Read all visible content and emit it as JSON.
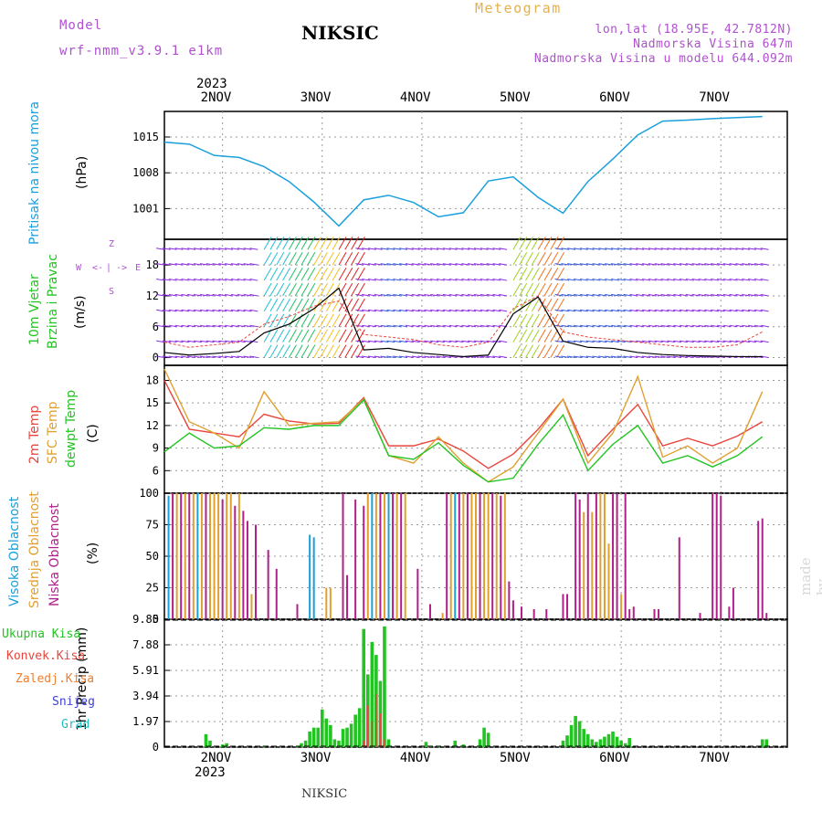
{
  "header": {
    "model_label": "Model",
    "model_name": "wrf-nmm_v3.9.1 e1km",
    "station": "NIKSIC",
    "meteogram_label": "Meteogram",
    "coords": "lon,lat (18.95E, 42.7812N)",
    "elevation": "Nadmorska Visina 647m",
    "model_elevation": "Nadmorska Visina u modelu 644.092m",
    "year_top": "2023",
    "year_bottom": "2023",
    "footer_station": "NIKSIC",
    "credit": "made by Angel"
  },
  "colors": {
    "pressure": "#1aa0dc",
    "temp2m": "#e8453c",
    "sfc": "#e0a030",
    "dew": "#22c422",
    "wind_line": "#000000",
    "gust_line": "#e8453c",
    "cloud_high": "#1aa0dc",
    "cloud_mid": "#e0a030",
    "cloud_low": "#b0208a",
    "precip_total": "#22c422",
    "precip_conv": "#e8453c"
  },
  "axis_labels": {
    "pressure": [
      "Pritisak na nivou mora",
      "(hPa)"
    ],
    "wind": [
      "10m Vjetar",
      "Brzina i Pravac",
      "(m/s)"
    ],
    "temp": [
      "2m Temp",
      "SFC Temp",
      "dewpt Temp",
      "(C)"
    ],
    "cloud": [
      "Visoka Oblacnost",
      "Srednja Oblacnost",
      "Niska Oblacnost",
      "(%)"
    ],
    "precip": [
      "1hr Precip (mm)"
    ],
    "precip_legend": [
      "Ukupna Kisa",
      "Konvek.Kisa",
      "Zaledj.Kisa",
      "Snijeg",
      "Grad"
    ],
    "compass": [
      "Z",
      "<-",
      "|",
      "->",
      "E",
      "W",
      "S"
    ]
  },
  "days": [
    "2NOV",
    "3NOV",
    "4NOV",
    "5NOV",
    "6NOV",
    "7NOV"
  ],
  "chart_data": [
    {
      "type": "line",
      "name": "pressure",
      "ylabel": "Pritisak na nivou mora (hPa)",
      "ylim": [
        995,
        1020
      ],
      "yticks": [
        1001,
        1008,
        1015
      ],
      "x_hours": [
        0,
        6,
        12,
        18,
        24,
        30,
        36,
        42,
        48,
        54,
        60,
        66,
        72,
        78,
        84,
        90,
        96,
        102,
        108,
        114,
        120,
        126,
        132,
        138,
        144
      ],
      "values": [
        1014,
        1013.6,
        1011.4,
        1011,
        1009.2,
        1006.3,
        1002.3,
        997.6,
        1002.7,
        1003.6,
        1002.2,
        999.4,
        1000.2,
        1006.4,
        1007.2,
        1003.2,
        1000.1,
        1006.3,
        1010.7,
        1015.4,
        1018.1,
        1018.3,
        1018.6,
        1018.8,
        1019
      ]
    },
    {
      "type": "line",
      "name": "wind",
      "ylabel": "10m Vjetar Brzina i Pravac (m/s)",
      "ylim": [
        -1.5,
        23
      ],
      "yticks": [
        0,
        6,
        12,
        18
      ],
      "x_hours": [
        0,
        6,
        12,
        18,
        24,
        30,
        36,
        42,
        48,
        54,
        60,
        66,
        72,
        78,
        84,
        90,
        96,
        102,
        108,
        114,
        120,
        126,
        132,
        138,
        144
      ],
      "values": [
        1,
        0.5,
        0.8,
        1.2,
        4.8,
        6.5,
        9.5,
        13.5,
        1.5,
        1.8,
        1,
        0.6,
        0.2,
        0.5,
        8.5,
        11.8,
        3.2,
        2,
        1.8,
        1,
        0.6,
        0.4,
        0.3,
        0.2,
        0.2
      ],
      "gusts": [
        3,
        2,
        2.5,
        3,
        6.5,
        8,
        10,
        11,
        4.5,
        4,
        3.5,
        2.5,
        2,
        3,
        9.5,
        12,
        5,
        4,
        3.5,
        3,
        2.5,
        2,
        2,
        2.5,
        5
      ]
    },
    {
      "type": "line",
      "name": "temperature",
      "ylabel": "(C)",
      "ylim": [
        3,
        20
      ],
      "yticks": [
        6,
        9,
        12,
        15,
        18
      ],
      "x_hours": [
        0,
        6,
        12,
        18,
        24,
        30,
        36,
        42,
        48,
        54,
        60,
        66,
        72,
        78,
        84,
        90,
        96,
        102,
        108,
        114,
        120,
        126,
        132,
        138,
        144
      ],
      "series": [
        {
          "name": "2m Temp",
          "values": [
            18,
            11.5,
            11,
            10.5,
            13.5,
            12.6,
            12.2,
            12.3,
            15.7,
            9.3,
            9.3,
            10.2,
            8.6,
            6.3,
            8.2,
            11.5,
            15.5,
            8,
            11.5,
            14.8,
            9.3,
            10.3,
            9.3,
            10.6,
            12.5
          ]
        },
        {
          "name": "SFC Temp",
          "values": [
            19.5,
            12.5,
            11,
            9,
            16.5,
            12,
            12.3,
            12.5,
            15.5,
            8,
            7,
            10.5,
            7,
            4.5,
            6.5,
            11,
            15.5,
            7,
            11,
            18.5,
            7.8,
            9.3,
            7,
            9,
            16.5
          ]
        },
        {
          "name": "dewpt Temp",
          "values": [
            8.5,
            11,
            9,
            9.3,
            11.7,
            11.5,
            12,
            12,
            15.4,
            8,
            7.5,
            9.7,
            6.7,
            4.5,
            5,
            9.5,
            13.4,
            6,
            9.5,
            12,
            7,
            8,
            6.5,
            8,
            10.5
          ]
        }
      ]
    },
    {
      "type": "bar",
      "name": "cloud",
      "ylabel": "(%)",
      "ylim": [
        0,
        100
      ],
      "yticks": [
        0,
        25,
        50,
        75,
        100
      ],
      "bins": [
        {
          "h": 1,
          "c": "high",
          "v": 98
        },
        {
          "h": 2,
          "c": "low",
          "v": 100
        },
        {
          "h": 3,
          "c": "mid",
          "v": 100
        },
        {
          "h": 4,
          "c": "low",
          "v": 100
        },
        {
          "h": 5,
          "c": "mid",
          "v": 100
        },
        {
          "h": 6,
          "c": "low",
          "v": 100
        },
        {
          "h": 7,
          "c": "mid",
          "v": 100
        },
        {
          "h": 8,
          "c": "high",
          "v": 100
        },
        {
          "h": 9,
          "c": "mid",
          "v": 100
        },
        {
          "h": 10,
          "c": "low",
          "v": 100
        },
        {
          "h": 11,
          "c": "mid",
          "v": 100
        },
        {
          "h": 12,
          "c": "mid",
          "v": 100
        },
        {
          "h": 13,
          "c": "mid",
          "v": 100
        },
        {
          "h": 14,
          "c": "low",
          "v": 95
        },
        {
          "h": 15,
          "c": "mid",
          "v": 100
        },
        {
          "h": 16,
          "c": "mid",
          "v": 100
        },
        {
          "h": 17,
          "c": "low",
          "v": 90
        },
        {
          "h": 18,
          "c": "mid",
          "v": 100
        },
        {
          "h": 19,
          "c": "low",
          "v": 86
        },
        {
          "h": 20,
          "c": "low",
          "v": 78
        },
        {
          "h": 21,
          "c": "mid",
          "v": 20
        },
        {
          "h": 22,
          "c": "low",
          "v": 75
        },
        {
          "h": 25,
          "c": "low",
          "v": 55
        },
        {
          "h": 27,
          "c": "low",
          "v": 40
        },
        {
          "h": 32,
          "c": "low",
          "v": 12
        },
        {
          "h": 35,
          "c": "high",
          "v": 67
        },
        {
          "h": 36,
          "c": "high",
          "v": 65
        },
        {
          "h": 39,
          "c": "mid",
          "v": 25
        },
        {
          "h": 40,
          "c": "mid",
          "v": 25
        },
        {
          "h": 43,
          "c": "low",
          "v": 100
        },
        {
          "h": 44,
          "c": "low",
          "v": 35
        },
        {
          "h": 46,
          "c": "low",
          "v": 95
        },
        {
          "h": 48,
          "c": "low",
          "v": 90
        },
        {
          "h": 49,
          "c": "mid",
          "v": 100
        },
        {
          "h": 50,
          "c": "high",
          "v": 100
        },
        {
          "h": 51,
          "c": "mid",
          "v": 100
        },
        {
          "h": 52,
          "c": "low",
          "v": 100
        },
        {
          "h": 53,
          "c": "mid",
          "v": 100
        },
        {
          "h": 54,
          "c": "high",
          "v": 100
        },
        {
          "h": 55,
          "c": "low",
          "v": 100
        },
        {
          "h": 56,
          "c": "mid",
          "v": 100
        },
        {
          "h": 57,
          "c": "low",
          "v": 100
        },
        {
          "h": 58,
          "c": "mid",
          "v": 100
        },
        {
          "h": 61,
          "c": "low",
          "v": 40
        },
        {
          "h": 64,
          "c": "low",
          "v": 12
        },
        {
          "h": 67,
          "c": "mid",
          "v": 5
        },
        {
          "h": 68,
          "c": "low",
          "v": 100
        },
        {
          "h": 69,
          "c": "mid",
          "v": 100
        },
        {
          "h": 70,
          "c": "high",
          "v": 100
        },
        {
          "h": 71,
          "c": "low",
          "v": 100
        },
        {
          "h": 72,
          "c": "mid",
          "v": 100
        },
        {
          "h": 73,
          "c": "low",
          "v": 100
        },
        {
          "h": 74,
          "c": "mid",
          "v": 100
        },
        {
          "h": 75,
          "c": "mid",
          "v": 100
        },
        {
          "h": 76,
          "c": "low",
          "v": 100
        },
        {
          "h": 77,
          "c": "mid",
          "v": 100
        },
        {
          "h": 78,
          "c": "mid",
          "v": 100
        },
        {
          "h": 79,
          "c": "low",
          "v": 100
        },
        {
          "h": 80,
          "c": "mid",
          "v": 100
        },
        {
          "h": 81,
          "c": "low",
          "v": 98
        },
        {
          "h": 82,
          "c": "mid",
          "v": 100
        },
        {
          "h": 83,
          "c": "low",
          "v": 30
        },
        {
          "h": 84,
          "c": "low",
          "v": 15
        },
        {
          "h": 86,
          "c": "low",
          "v": 10
        },
        {
          "h": 89,
          "c": "low",
          "v": 8
        },
        {
          "h": 92,
          "c": "low",
          "v": 8
        },
        {
          "h": 96,
          "c": "low",
          "v": 20
        },
        {
          "h": 97,
          "c": "low",
          "v": 20
        },
        {
          "h": 99,
          "c": "low",
          "v": 100
        },
        {
          "h": 100,
          "c": "low",
          "v": 95
        },
        {
          "h": 101,
          "c": "mid",
          "v": 85
        },
        {
          "h": 102,
          "c": "low",
          "v": 100
        },
        {
          "h": 103,
          "c": "mid",
          "v": 85
        },
        {
          "h": 104,
          "c": "low",
          "v": 100
        },
        {
          "h": 105,
          "c": "mid",
          "v": 100
        },
        {
          "h": 106,
          "c": "mid",
          "v": 100
        },
        {
          "h": 107,
          "c": "mid",
          "v": 60
        },
        {
          "h": 108,
          "c": "low",
          "v": 100
        },
        {
          "h": 109,
          "c": "low",
          "v": 100
        },
        {
          "h": 110,
          "c": "mid",
          "v": 20
        },
        {
          "h": 111,
          "c": "low",
          "v": 100
        },
        {
          "h": 112,
          "c": "low",
          "v": 8
        },
        {
          "h": 113,
          "c": "low",
          "v": 10
        },
        {
          "h": 118,
          "c": "low",
          "v": 8
        },
        {
          "h": 119,
          "c": "low",
          "v": 8
        },
        {
          "h": 124,
          "c": "low",
          "v": 65
        },
        {
          "h": 129,
          "c": "low",
          "v": 5
        },
        {
          "h": 132,
          "c": "low",
          "v": 100
        },
        {
          "h": 133,
          "c": "low",
          "v": 100
        },
        {
          "h": 134,
          "c": "low",
          "v": 98
        },
        {
          "h": 136,
          "c": "low",
          "v": 10
        },
        {
          "h": 137,
          "c": "low",
          "v": 25
        },
        {
          "h": 143,
          "c": "low",
          "v": 78
        },
        {
          "h": 144,
          "c": "low",
          "v": 80
        },
        {
          "h": 145,
          "c": "low",
          "v": 5
        }
      ]
    },
    {
      "type": "bar",
      "name": "precip",
      "ylabel": "1hr Precip (mm)",
      "ylim": [
        0,
        9.85
      ],
      "yticks": [
        0,
        1.97,
        3.94,
        5.91,
        7.88,
        9.85
      ],
      "bins": [
        {
          "h": 10,
          "t": 1.0
        },
        {
          "h": 11,
          "t": 0.5
        },
        {
          "h": 14,
          "t": 0.2
        },
        {
          "h": 15,
          "t": 0.3
        },
        {
          "h": 24,
          "t": 0.1
        },
        {
          "h": 32,
          "t": 0.1
        },
        {
          "h": 33,
          "t": 0.3
        },
        {
          "h": 34,
          "t": 0.5
        },
        {
          "h": 35,
          "t": 1.2
        },
        {
          "h": 36,
          "t": 1.5
        },
        {
          "h": 37,
          "t": 1.5
        },
        {
          "h": 38,
          "t": 2.9
        },
        {
          "h": 39,
          "t": 2.2
        },
        {
          "h": 40,
          "t": 1.7
        },
        {
          "h": 41,
          "t": 0.6
        },
        {
          "h": 42,
          "t": 0.5
        },
        {
          "h": 43,
          "t": 1.4
        },
        {
          "h": 44,
          "t": 1.5
        },
        {
          "h": 45,
          "t": 1.8
        },
        {
          "h": 46,
          "t": 2.5
        },
        {
          "h": 47,
          "t": 3.0
        },
        {
          "h": 48,
          "t": 9.1,
          "c": 0.5
        },
        {
          "h": 49,
          "t": 5.6,
          "c": 3.2
        },
        {
          "h": 50,
          "t": 8.1,
          "c": 2.0
        },
        {
          "h": 51,
          "t": 7.1,
          "c": 4.1
        },
        {
          "h": 52,
          "t": 5.1,
          "c": 2.6
        },
        {
          "h": 53,
          "t": 9.3,
          "c": 0.6
        },
        {
          "h": 54,
          "t": 0.6
        },
        {
          "h": 63,
          "t": 0.4
        },
        {
          "h": 64,
          "t": 0.1
        },
        {
          "h": 66,
          "t": 0.1
        },
        {
          "h": 70,
          "t": 0.5
        },
        {
          "h": 72,
          "t": 0.2
        },
        {
          "h": 76,
          "t": 0.6
        },
        {
          "h": 77,
          "t": 1.5
        },
        {
          "h": 78,
          "t": 1.1
        },
        {
          "h": 96,
          "t": 0.5
        },
        {
          "h": 97,
          "t": 0.9
        },
        {
          "h": 98,
          "t": 1.7
        },
        {
          "h": 99,
          "t": 2.4
        },
        {
          "h": 100,
          "t": 2.0
        },
        {
          "h": 101,
          "t": 1.4
        },
        {
          "h": 102,
          "t": 1.0
        },
        {
          "h": 103,
          "t": 0.6
        },
        {
          "h": 104,
          "t": 0.4
        },
        {
          "h": 105,
          "t": 0.6
        },
        {
          "h": 106,
          "t": 0.8
        },
        {
          "h": 107,
          "t": 1.0
        },
        {
          "h": 108,
          "t": 1.2
        },
        {
          "h": 109,
          "t": 0.8
        },
        {
          "h": 110,
          "t": 0.5
        },
        {
          "h": 111,
          "t": 0.3
        },
        {
          "h": 112,
          "t": 0.7
        },
        {
          "h": 144,
          "t": 0.6
        },
        {
          "h": 145,
          "t": 0.6
        }
      ]
    }
  ]
}
